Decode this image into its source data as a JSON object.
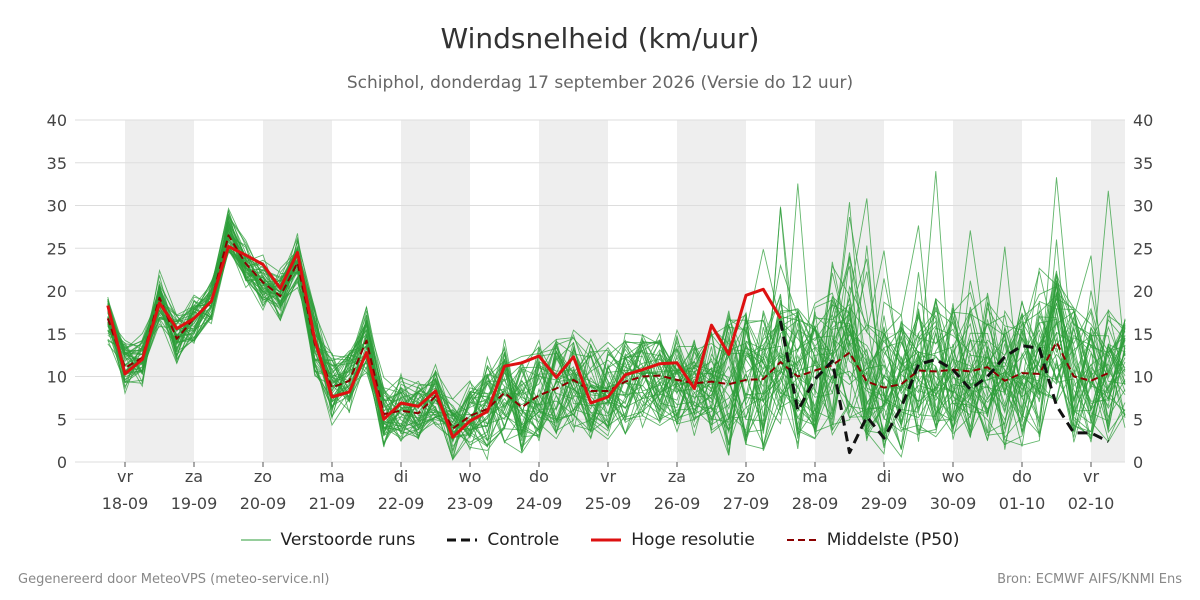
{
  "header": {
    "title": "Windsnelheid (km/uur)",
    "subtitle": "Schiphol, donderdag 17 september 2026 (Versie do 12 uur)"
  },
  "footer": {
    "left": "Gegenereerd door MeteoVPS (meteo-service.nl)",
    "right": "Bron: ECMWF AIFS/KNMI Ens"
  },
  "legend": {
    "items": [
      {
        "label": "Verstoorde runs",
        "color": "#2e9e3a",
        "style": "thin"
      },
      {
        "label": "Controle",
        "color": "#111111",
        "style": "dashed"
      },
      {
        "label": "Hoge resolutie",
        "color": "#dd1111",
        "style": "solid"
      },
      {
        "label": "Middelste (P50)",
        "color": "#8b0000",
        "style": "dashed"
      }
    ]
  },
  "colors": {
    "ensemble": "#2e9e3a",
    "control": "#111111",
    "hires": "#dd1111",
    "median": "#8b0000",
    "weekend_band": "#eeeeee",
    "grid": "#dddddd"
  },
  "chart_data": {
    "type": "line",
    "x_axis": "time (6-hourly steps)",
    "x_start": "2026-09-18 00:00",
    "ylim": [
      0,
      40
    ],
    "yticks": [
      0,
      5,
      10,
      15,
      20,
      25,
      30,
      35,
      40
    ],
    "grid": true,
    "legend_placement": "bottom",
    "day_ticks": [
      {
        "day": "vr",
        "date": "18-09"
      },
      {
        "day": "za",
        "date": "19-09"
      },
      {
        "day": "zo",
        "date": "20-09"
      },
      {
        "day": "ma",
        "date": "21-09"
      },
      {
        "day": "di",
        "date": "22-09"
      },
      {
        "day": "wo",
        "date": "23-09"
      },
      {
        "day": "do",
        "date": "24-09"
      },
      {
        "day": "vr",
        "date": "25-09"
      },
      {
        "day": "za",
        "date": "26-09"
      },
      {
        "day": "zo",
        "date": "27-09"
      },
      {
        "day": "ma",
        "date": "28-09"
      },
      {
        "day": "di",
        "date": "29-09"
      },
      {
        "day": "wo",
        "date": "30-09"
      },
      {
        "day": "do",
        "date": "01-10"
      },
      {
        "day": "vr",
        "date": "02-10"
      }
    ],
    "shaded_days": [
      "18-09",
      "20-09",
      "22-09",
      "24-09",
      "26-09",
      "28-09",
      "30-09",
      "02-10"
    ],
    "series": [
      {
        "name": "Hoge resolutie",
        "x": [
          "17-09 18:00",
          "18-09 00:00",
          "18-09 06:00",
          "18-09 12:00",
          "18-09 18:00",
          "19-09 00:00",
          "19-09 06:00",
          "19-09 12:00",
          "19-09 18:00",
          "20-09 00:00",
          "20-09 06:00",
          "20-09 12:00",
          "20-09 18:00",
          "21-09 00:00",
          "21-09 06:00",
          "21-09 12:00",
          "21-09 18:00",
          "22-09 00:00",
          "22-09 06:00",
          "22-09 12:00",
          "22-09 18:00",
          "23-09 00:00",
          "23-09 06:00",
          "23-09 12:00",
          "23-09 18:00",
          "24-09 00:00",
          "24-09 06:00",
          "24-09 12:00",
          "24-09 18:00",
          "25-09 00:00",
          "25-09 06:00",
          "25-09 12:00",
          "25-09 18:00",
          "26-09 00:00",
          "26-09 06:00",
          "26-09 12:00",
          "26-09 18:00",
          "27-09 00:00",
          "27-09 06:00",
          "27-09 12:00"
        ],
        "values": [
          18.3,
          10.3,
          12.0,
          18.6,
          15.6,
          16.8,
          18.8,
          25.2,
          24.2,
          23.1,
          20.3,
          24.5,
          14.3,
          7.6,
          8.2,
          12.8,
          5.0,
          6.9,
          6.5,
          8.3,
          2.9,
          4.8,
          5.9,
          11.2,
          11.6,
          12.4,
          9.9,
          12.3,
          6.9,
          7.6,
          10.2,
          10.8,
          11.5,
          11.6,
          8.6,
          16.0,
          12.6,
          19.5,
          20.2,
          16.8
        ]
      },
      {
        "name": "Controle",
        "x": [
          "27-09 12:00",
          "27-09 18:00",
          "28-09 00:00",
          "28-09 06:00",
          "28-09 12:00",
          "28-09 18:00",
          "29-09 00:00",
          "29-09 06:00",
          "29-09 12:00",
          "29-09 18:00",
          "30-09 00:00",
          "30-09 06:00",
          "30-09 12:00",
          "30-09 18:00",
          "01-10 00:00",
          "01-10 06:00",
          "01-10 12:00",
          "01-10 18:00",
          "02-10 00:00",
          "02-10 06:00"
        ],
        "values": [
          16.5,
          6.0,
          9.7,
          11.8,
          1.1,
          5.3,
          2.8,
          6.4,
          11.4,
          12.0,
          10.8,
          8.5,
          10.0,
          12.3,
          13.6,
          13.3,
          6.6,
          3.4,
          3.4,
          2.4
        ]
      },
      {
        "name": "Middelste (P50)",
        "x": [
          "17-09 18:00",
          "18-09 00:00",
          "18-09 06:00",
          "18-09 12:00",
          "18-09 18:00",
          "19-09 00:00",
          "19-09 06:00",
          "19-09 12:00",
          "19-09 18:00",
          "20-09 00:00",
          "20-09 06:00",
          "20-09 12:00",
          "20-09 18:00",
          "21-09 00:00",
          "21-09 06:00",
          "21-09 12:00",
          "21-09 18:00",
          "22-09 00:00",
          "22-09 06:00",
          "22-09 12:00",
          "22-09 18:00",
          "23-09 00:00",
          "23-09 06:00",
          "23-09 12:00",
          "23-09 18:00",
          "24-09 00:00",
          "24-09 06:00",
          "24-09 12:00",
          "24-09 18:00",
          "25-09 00:00",
          "25-09 06:00",
          "25-09 12:00",
          "25-09 18:00",
          "26-09 00:00",
          "26-09 06:00",
          "26-09 12:00",
          "26-09 18:00",
          "27-09 00:00",
          "27-09 06:00",
          "27-09 12:00",
          "27-09 18:00",
          "28-09 00:00",
          "28-09 06:00",
          "28-09 12:00",
          "28-09 18:00",
          "29-09 00:00",
          "29-09 06:00",
          "29-09 12:00",
          "29-09 18:00",
          "30-09 00:00",
          "30-09 06:00",
          "30-09 12:00",
          "30-09 18:00",
          "01-10 00:00",
          "01-10 06:00",
          "01-10 12:00",
          "01-10 18:00",
          "02-10 00:00",
          "02-10 06:00"
        ],
        "values": [
          16.8,
          11.0,
          12.2,
          19.2,
          14.4,
          16.8,
          18.8,
          26.5,
          23.2,
          21.0,
          19.4,
          23.3,
          13.8,
          8.7,
          9.5,
          14.2,
          5.6,
          6.0,
          5.7,
          7.7,
          3.9,
          5.4,
          6.2,
          8.1,
          6.4,
          7.8,
          8.6,
          9.6,
          8.3,
          8.3,
          9.4,
          10.0,
          10.1,
          9.6,
          9.2,
          9.4,
          9.1,
          9.6,
          9.7,
          11.7,
          10.0,
          10.7,
          11.3,
          12.8,
          9.4,
          8.7,
          9.1,
          10.7,
          10.6,
          10.8,
          10.6,
          11.1,
          9.5,
          10.4,
          10.3,
          14.0,
          10.0,
          9.5,
          10.4
        ]
      }
    ],
    "ensemble_members": 50,
    "ensemble_range_note": "Verstoorde runs between 0 and 37 km/uur"
  }
}
